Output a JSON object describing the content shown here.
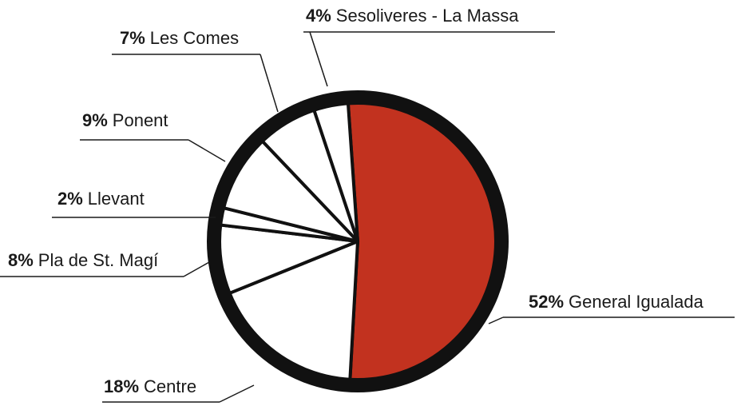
{
  "chart_data": {
    "type": "pie",
    "categories": [
      "General Igualada",
      "Centre",
      "Pla de St. Magí",
      "Llevant",
      "Ponent",
      "Les Comes",
      "Sesoliveres - La Massa"
    ],
    "values": [
      52,
      18,
      8,
      2,
      9,
      7,
      4
    ],
    "value_labels": [
      "52%",
      "18%",
      "8%",
      "2%",
      "9%",
      "7%",
      "4%"
    ],
    "colors": [
      "#c2321f",
      "#ffffff",
      "#ffffff",
      "#ffffff",
      "#ffffff",
      "#ffffff",
      "#ffffff"
    ]
  }
}
